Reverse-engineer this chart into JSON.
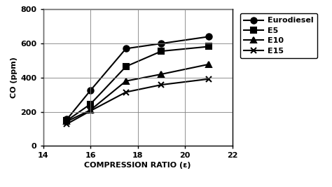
{
  "x_values": [
    15,
    16,
    17.5,
    19,
    21
  ],
  "series": [
    {
      "label": "Eurodiesel",
      "y": [
        155,
        325,
        570,
        600,
        640
      ],
      "marker": "o",
      "markersize": 6
    },
    {
      "label": "E5",
      "y": [
        148,
        245,
        465,
        555,
        582
      ],
      "marker": "s",
      "markersize": 6
    },
    {
      "label": "E10",
      "y": [
        143,
        210,
        380,
        420,
        478
      ],
      "marker": "^",
      "markersize": 6
    },
    {
      "label": "E15",
      "y": [
        128,
        205,
        315,
        358,
        392
      ],
      "marker": "x",
      "markersize": 6
    }
  ],
  "xlabel": "COMPRESSION RATIO (ε)",
  "ylabel": "CO (ppm)",
  "xlim": [
    14,
    22
  ],
  "ylim": [
    0,
    800
  ],
  "xticks": [
    14,
    16,
    18,
    20,
    22
  ],
  "yticks": [
    0,
    200,
    400,
    600,
    800
  ],
  "grid": true,
  "background_color": "#ffffff",
  "linewidth": 1.5,
  "color": "black"
}
